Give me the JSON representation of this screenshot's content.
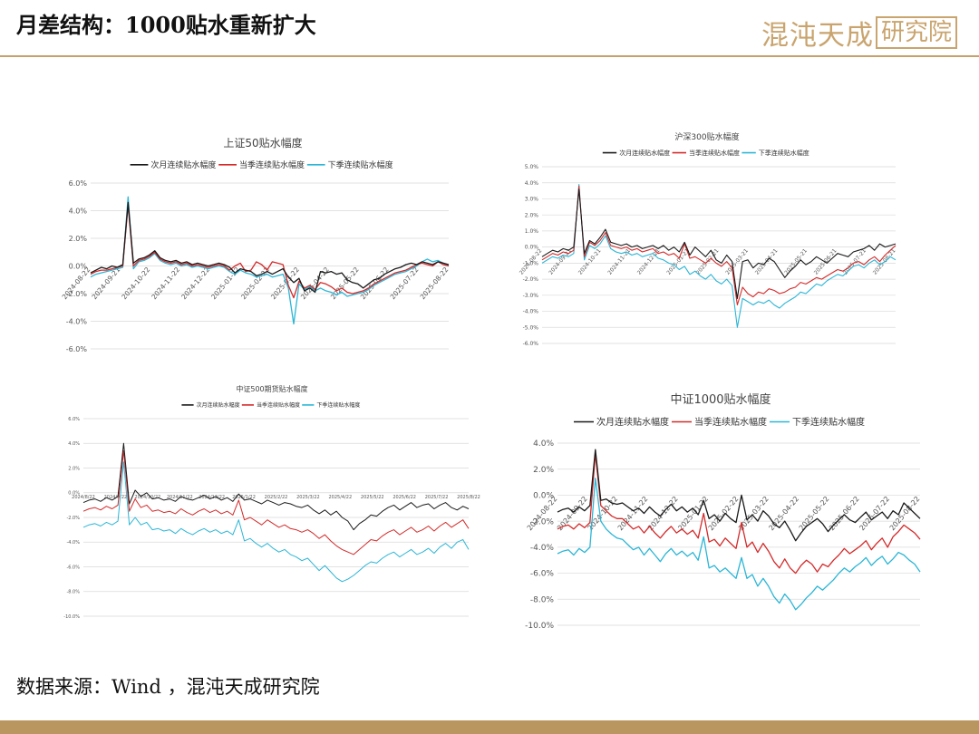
{
  "header": {
    "title": "月差结构：1000贴水重新扩大",
    "logo_script": "混沌天成",
    "logo_box": "研究院"
  },
  "footer": {
    "source": "数据来源：Wind ，混沌天成研究院"
  },
  "colors": {
    "near": "#1a1a1a",
    "quarter": "#d42a2a",
    "next_quarter": "#2bb6d6",
    "accent": "#c9a46e",
    "grid": "#d9d9d9"
  },
  "chart_data": [
    {
      "type": "line",
      "title": "上证50贴水幅度",
      "ylim": [
        -6,
        6
      ],
      "yticks": [
        -6,
        -4,
        -2,
        0,
        2,
        4,
        6
      ],
      "ytick_labels": [
        "-6.0%",
        "-4.0%",
        "-2.0%",
        "0.0%",
        "2.0%",
        "4.0%",
        "6.0%"
      ],
      "x_tick_labels": [
        "2024-08-22",
        "2024-09-21",
        "2024-10-22",
        "2024-11-22",
        "2024-12-22",
        "2025-01-22",
        "2025-02-22",
        "2025-03-22",
        "2025-04-22",
        "2025-05-22",
        "2025-06-22",
        "2025-07-22",
        "2025-08-22"
      ],
      "legend": [
        "次月连续贴水幅度",
        "当季连续贴水幅度",
        "下季连续贴水幅度"
      ],
      "legend_position": "top",
      "grid": true,
      "series": [
        {
          "name": "次月连续贴水幅度",
          "values": [
            -0.5,
            -0.3,
            -0.1,
            -0.2,
            0.0,
            -0.1,
            0.1,
            4.6,
            0.2,
            0.5,
            0.6,
            0.8,
            1.1,
            0.6,
            0.4,
            0.3,
            0.4,
            0.2,
            0.3,
            0.1,
            0.2,
            0.1,
            0.0,
            0.1,
            0.2,
            0.1,
            -0.1,
            -0.5,
            -0.2,
            -0.3,
            -0.4,
            -0.7,
            -0.6,
            -0.4,
            -0.6,
            -0.4,
            -0.2,
            -0.8,
            -1.2,
            -0.9,
            -1.8,
            -1.6,
            -1.9,
            -0.4,
            -0.5,
            -0.4,
            -0.6,
            -0.5,
            -1.0,
            -1.2,
            -1.3,
            -1.6,
            -1.3,
            -1.0,
            -0.9,
            -0.6,
            -0.4,
            -0.2,
            -0.1,
            0.1,
            0.2,
            0.1,
            0.3,
            0.2,
            0.1,
            0.3,
            0.2,
            0.1
          ]
        },
        {
          "name": "当季连续贴水幅度",
          "values": [
            -0.6,
            -0.4,
            -0.3,
            -0.3,
            -0.2,
            -0.1,
            0.0,
            4.4,
            0.0,
            0.4,
            0.5,
            0.7,
            1.0,
            0.5,
            0.3,
            0.2,
            0.3,
            0.1,
            0.2,
            0.0,
            0.1,
            0.0,
            -0.1,
            0.0,
            0.1,
            0.0,
            -0.3,
            0.0,
            0.2,
            -0.4,
            -0.3,
            0.3,
            0.1,
            -0.3,
            0.3,
            0.2,
            0.1,
            -1.4,
            -2.3,
            -1.1,
            -1.6,
            -1.4,
            -1.7,
            -1.2,
            -1.3,
            -1.5,
            -1.8,
            -1.6,
            -1.9,
            -2.0,
            -1.9,
            -1.8,
            -1.6,
            -1.3,
            -1.1,
            -0.9,
            -0.7,
            -0.5,
            -0.4,
            -0.3,
            -0.1,
            0.1,
            0.2,
            0.1,
            0.0,
            0.3,
            0.1,
            0.0
          ]
        },
        {
          "name": "下季连续贴水幅度",
          "values": [
            -0.8,
            -0.6,
            -0.5,
            -0.4,
            -0.3,
            -0.2,
            -0.1,
            5.0,
            -0.2,
            0.3,
            0.4,
            0.6,
            0.9,
            0.4,
            0.2,
            0.1,
            0.2,
            0.0,
            0.1,
            -0.1,
            0.0,
            -0.1,
            -0.2,
            -0.1,
            0.0,
            -0.1,
            -0.4,
            -0.6,
            -0.3,
            -0.5,
            -0.6,
            -0.8,
            -0.7,
            -0.6,
            -0.8,
            -0.7,
            -0.6,
            -1.6,
            -4.2,
            -1.3,
            -1.7,
            -1.5,
            -1.8,
            -1.6,
            -1.8,
            -1.9,
            -2.1,
            -1.9,
            -2.2,
            -2.1,
            -2.0,
            -1.9,
            -1.7,
            -1.4,
            -1.2,
            -1.0,
            -0.8,
            -0.6,
            -0.5,
            -0.4,
            -0.2,
            0.0,
            0.3,
            0.5,
            0.3,
            0.4,
            0.2,
            0.0
          ]
        }
      ]
    },
    {
      "type": "line",
      "title": "沪深300贴水幅度",
      "ylim": [
        -6,
        5
      ],
      "yticks": [
        -6,
        -5,
        -4,
        -3,
        -2,
        -1,
        0,
        1,
        2,
        3,
        4,
        5
      ],
      "ytick_labels": [
        "-6.0%",
        "-5.0%",
        "-4.0%",
        "-3.0%",
        "-2.0%",
        "-1.0%",
        "0.0%",
        "1.0%",
        "2.0%",
        "3.0%",
        "4.0%",
        "5.0%"
      ],
      "x_tick_labels": [
        "2024-08-22",
        "2024-09-21",
        "2024-10-21",
        "2024-11-21",
        "2024-12-21",
        "2025-01-21",
        "2025-02-21",
        "2025-03-21",
        "2025-04-21",
        "2025-05-21",
        "2025-06-21",
        "2025-07-21",
        "2025-08-21"
      ],
      "legend": [
        "次月连续贴水幅度",
        "当季连续贴水幅度",
        "下季连续贴水幅度"
      ],
      "legend_position": "top",
      "grid": true,
      "series": [
        {
          "name": "次月连续贴水幅度",
          "values": [
            -0.6,
            -0.4,
            -0.2,
            -0.3,
            -0.1,
            -0.2,
            0.0,
            3.6,
            -0.4,
            0.4,
            0.2,
            0.6,
            1.1,
            0.3,
            0.2,
            0.1,
            0.2,
            0.0,
            0.1,
            -0.1,
            0.0,
            0.1,
            -0.1,
            0.1,
            -0.2,
            0.0,
            -0.3,
            0.3,
            -0.5,
            0.0,
            -0.3,
            -0.6,
            -0.2,
            -0.8,
            -1.0,
            -0.5,
            -0.9,
            -3.2,
            -0.9,
            -0.8,
            -1.3,
            -1.0,
            -1.1,
            -0.7,
            -0.9,
            -1.4,
            -1.9,
            -1.5,
            -1.2,
            -0.8,
            -1.1,
            -0.9,
            -0.6,
            -0.8,
            -1.0,
            -0.7,
            -0.4,
            -0.5,
            -0.6,
            -0.3,
            -0.2,
            -0.1,
            0.1,
            -0.2,
            0.2,
            0.0,
            0.1,
            0.2
          ]
        },
        {
          "name": "当季连续贴水幅度",
          "values": [
            -0.8,
            -0.6,
            -0.4,
            -0.5,
            -0.3,
            -0.4,
            -0.2,
            3.8,
            -0.6,
            0.3,
            0.1,
            0.4,
            0.9,
            0.1,
            0.0,
            -0.1,
            0.0,
            -0.2,
            -0.1,
            -0.3,
            -0.2,
            -0.1,
            -0.4,
            -0.3,
            -0.5,
            -0.4,
            -0.7,
            0.2,
            -0.7,
            -0.6,
            -0.8,
            -1.0,
            -0.7,
            -1.0,
            -1.2,
            -0.9,
            -1.3,
            -3.6,
            -2.5,
            -2.9,
            -3.1,
            -2.8,
            -2.9,
            -2.6,
            -2.7,
            -2.9,
            -2.8,
            -2.6,
            -2.5,
            -2.2,
            -2.3,
            -2.1,
            -1.9,
            -2.0,
            -1.8,
            -1.6,
            -1.4,
            -1.5,
            -1.3,
            -1.0,
            -0.9,
            -1.1,
            -0.8,
            -0.6,
            -0.9,
            -0.5,
            -0.2,
            0.1
          ]
        },
        {
          "name": "下季连续贴水幅度",
          "values": [
            -1.0,
            -0.8,
            -0.6,
            -0.7,
            -0.5,
            -0.6,
            -0.4,
            3.9,
            -0.8,
            0.1,
            -0.1,
            0.2,
            0.7,
            -0.1,
            -0.3,
            -0.4,
            -0.3,
            -0.5,
            -0.4,
            -0.6,
            -0.5,
            -0.4,
            -0.7,
            -0.8,
            -1.0,
            -1.1,
            -1.4,
            -1.2,
            -1.7,
            -1.5,
            -1.8,
            -2.0,
            -1.7,
            -2.1,
            -2.3,
            -2.0,
            -2.4,
            -5.0,
            -3.2,
            -3.4,
            -3.6,
            -3.4,
            -3.5,
            -3.3,
            -3.6,
            -3.8,
            -3.5,
            -3.3,
            -3.1,
            -2.8,
            -2.9,
            -2.6,
            -2.3,
            -2.4,
            -2.1,
            -1.9,
            -1.7,
            -1.8,
            -1.5,
            -1.2,
            -1.1,
            -1.3,
            -1.0,
            -0.8,
            -1.1,
            -0.9,
            -0.6,
            -0.8
          ]
        }
      ]
    },
    {
      "type": "line",
      "title": "中证500期货贴水幅度",
      "ylim": [
        -10,
        6
      ],
      "yticks": [
        -10,
        -8,
        -6,
        -4,
        -2,
        0,
        2,
        4,
        6
      ],
      "ytick_labels": [
        "-10.0%",
        "-8.0%",
        "-6.0%",
        "-4.0%",
        "-2.0%",
        "0.0%",
        "2.0%",
        "4.0%",
        "6.0%"
      ],
      "x_tick_labels": [
        "2024/8/22",
        "2024/9/22",
        "2024/10/22",
        "2024/11/22",
        "2024/12/22",
        "2025/1/22",
        "2025/2/22",
        "2025/3/22",
        "2025/4/22",
        "2025/5/22",
        "2025/6/22",
        "2025/7/22",
        "2025/8/22"
      ],
      "legend": [
        "次月连续贴水幅度",
        "当季连续贴水幅度",
        "下季连续贴水幅度"
      ],
      "legend_position": "top",
      "grid": true,
      "series": [
        {
          "name": "次月连续贴水幅度",
          "values": [
            -0.8,
            -0.6,
            -0.5,
            -0.7,
            -0.4,
            -0.6,
            -0.3,
            4.0,
            -0.9,
            0.2,
            -0.3,
            0.0,
            -0.5,
            -0.4,
            -0.6,
            -0.5,
            -0.7,
            -0.3,
            -0.5,
            -0.6,
            -0.4,
            -0.2,
            -0.5,
            -0.3,
            -0.6,
            -0.4,
            -0.7,
            -0.1,
            -0.6,
            -0.5,
            -0.7,
            -0.9,
            -0.6,
            -0.8,
            -1.0,
            -0.8,
            -0.9,
            -1.1,
            -1.2,
            -1.0,
            -1.4,
            -1.7,
            -1.4,
            -1.8,
            -1.5,
            -2.0,
            -2.3,
            -3.0,
            -2.5,
            -2.2,
            -1.8,
            -1.9,
            -1.5,
            -1.2,
            -1.0,
            -1.4,
            -1.1,
            -0.8,
            -1.2,
            -1.0,
            -0.9,
            -1.3,
            -1.0,
            -0.8,
            -1.2,
            -1.4,
            -1.1,
            -1.3
          ]
        },
        {
          "name": "当季连续贴水幅度",
          "values": [
            -1.5,
            -1.3,
            -1.2,
            -1.4,
            -1.1,
            -1.3,
            -1.0,
            3.4,
            -1.5,
            -0.5,
            -1.2,
            -1.0,
            -1.5,
            -1.4,
            -1.6,
            -1.5,
            -1.7,
            -1.3,
            -1.6,
            -1.8,
            -1.5,
            -1.3,
            -1.6,
            -1.4,
            -1.7,
            -1.5,
            -1.8,
            -0.6,
            -2.2,
            -2.0,
            -2.3,
            -2.6,
            -2.2,
            -2.5,
            -2.8,
            -2.6,
            -2.9,
            -3.0,
            -3.2,
            -3.0,
            -3.3,
            -3.7,
            -3.4,
            -3.9,
            -4.3,
            -4.6,
            -4.8,
            -5.0,
            -4.6,
            -4.2,
            -3.8,
            -3.9,
            -3.5,
            -3.2,
            -3.0,
            -3.4,
            -3.1,
            -2.8,
            -3.2,
            -3.0,
            -2.7,
            -3.1,
            -2.7,
            -2.4,
            -2.8,
            -2.5,
            -2.2,
            -2.9
          ]
        },
        {
          "name": "下季连续贴水幅度",
          "values": [
            -2.8,
            -2.6,
            -2.5,
            -2.7,
            -2.4,
            -2.6,
            -2.3,
            2.5,
            -2.6,
            -2.0,
            -2.6,
            -2.4,
            -3.0,
            -2.9,
            -3.1,
            -3.0,
            -3.3,
            -2.9,
            -3.2,
            -3.4,
            -3.1,
            -2.9,
            -3.2,
            -3.0,
            -3.3,
            -3.1,
            -3.4,
            -2.2,
            -3.9,
            -3.7,
            -4.1,
            -4.4,
            -4.1,
            -4.5,
            -4.8,
            -4.6,
            -5.0,
            -5.2,
            -5.5,
            -5.3,
            -5.8,
            -6.3,
            -5.9,
            -6.4,
            -6.9,
            -7.2,
            -7.0,
            -6.7,
            -6.3,
            -5.9,
            -5.6,
            -5.7,
            -5.3,
            -5.0,
            -4.8,
            -5.2,
            -4.9,
            -4.6,
            -5.0,
            -4.8,
            -4.5,
            -4.9,
            -4.4,
            -4.1,
            -4.5,
            -4.0,
            -3.8,
            -4.6
          ]
        }
      ]
    },
    {
      "type": "line",
      "title": "中证1000贴水幅度",
      "ylim": [
        -10,
        4
      ],
      "yticks": [
        -10,
        -8,
        -6,
        -4,
        -2,
        0,
        2,
        4
      ],
      "ytick_labels": [
        "-10.0%",
        "-8.0%",
        "-6.0%",
        "-4.0%",
        "-2.0%",
        "0.0%",
        "2.0%",
        "4.0%"
      ],
      "x_tick_labels": [
        "2024-08-22",
        "2024-09-22",
        "2024-10-22",
        "2024-11-22",
        "2024-12-22",
        "2025-01-22",
        "2025-02-22",
        "2025-03-22",
        "2025-04-22",
        "2025-05-22",
        "2025-06-22",
        "2025-07-22",
        "2025-08-22"
      ],
      "legend": [
        "次月连续贴水幅度",
        "当季连续贴水幅度",
        "下季连续贴水幅度"
      ],
      "legend_position": "top",
      "grid": true,
      "series": [
        {
          "name": "次月连续贴水幅度",
          "values": [
            -1.3,
            -1.1,
            -1.0,
            -1.3,
            -0.9,
            -1.2,
            -0.8,
            3.5,
            -0.4,
            -0.3,
            -0.6,
            -0.7,
            -0.6,
            -0.9,
            -1.2,
            -1.0,
            -1.4,
            -0.9,
            -1.3,
            -1.6,
            -1.1,
            -0.7,
            -1.2,
            -0.9,
            -1.3,
            -1.0,
            -1.5,
            -0.4,
            -1.8,
            -1.5,
            -2.0,
            -1.4,
            -1.8,
            -2.1,
            0.0,
            -1.9,
            -1.5,
            -2.0,
            -1.2,
            -1.6,
            -2.2,
            -2.5,
            -2.0,
            -2.7,
            -3.5,
            -2.9,
            -2.4,
            -2.1,
            -1.8,
            -2.2,
            -2.8,
            -2.3,
            -1.9,
            -1.5,
            -1.9,
            -2.1,
            -1.7,
            -1.3,
            -1.9,
            -1.6,
            -1.3,
            -1.8,
            -1.2,
            -1.5,
            -0.6,
            -1.0,
            -1.4,
            -1.8
          ]
        },
        {
          "name": "当季连续贴水幅度",
          "values": [
            -2.6,
            -2.4,
            -2.3,
            -2.6,
            -2.2,
            -2.5,
            -2.1,
            3.2,
            -0.8,
            -1.2,
            -1.6,
            -1.8,
            -1.8,
            -2.2,
            -2.6,
            -2.4,
            -2.9,
            -2.4,
            -2.9,
            -3.3,
            -2.8,
            -2.4,
            -2.9,
            -2.6,
            -3.0,
            -2.7,
            -3.3,
            -1.4,
            -3.6,
            -3.4,
            -3.9,
            -3.3,
            -3.7,
            -4.1,
            -2.1,
            -4.0,
            -3.6,
            -4.4,
            -3.7,
            -4.3,
            -5.1,
            -5.6,
            -4.9,
            -5.6,
            -6.0,
            -5.4,
            -5.0,
            -5.3,
            -5.9,
            -5.3,
            -5.5,
            -5.0,
            -4.6,
            -4.1,
            -4.5,
            -4.2,
            -3.9,
            -3.5,
            -4.2,
            -3.7,
            -3.3,
            -4.0,
            -3.2,
            -2.8,
            -2.3,
            -2.6,
            -2.9,
            -3.4
          ]
        },
        {
          "name": "下季连续贴水幅度",
          "values": [
            -4.5,
            -4.3,
            -4.2,
            -4.6,
            -4.1,
            -4.4,
            -4.0,
            1.3,
            -2.0,
            -2.6,
            -3.0,
            -3.3,
            -3.4,
            -3.8,
            -4.2,
            -4.0,
            -4.6,
            -4.1,
            -4.6,
            -5.1,
            -4.5,
            -4.1,
            -4.6,
            -4.3,
            -4.7,
            -4.4,
            -5.0,
            -3.2,
            -5.6,
            -5.4,
            -5.9,
            -5.6,
            -6.0,
            -6.4,
            -4.8,
            -6.4,
            -6.1,
            -7.0,
            -6.4,
            -7.0,
            -7.8,
            -8.3,
            -7.6,
            -8.1,
            -8.8,
            -8.4,
            -7.9,
            -7.5,
            -7.0,
            -7.3,
            -6.9,
            -6.5,
            -6.0,
            -5.6,
            -5.9,
            -5.5,
            -5.2,
            -4.8,
            -5.4,
            -5.0,
            -4.7,
            -5.3,
            -4.9,
            -4.4,
            -4.6,
            -5.0,
            -5.3,
            -5.9
          ]
        }
      ]
    }
  ]
}
